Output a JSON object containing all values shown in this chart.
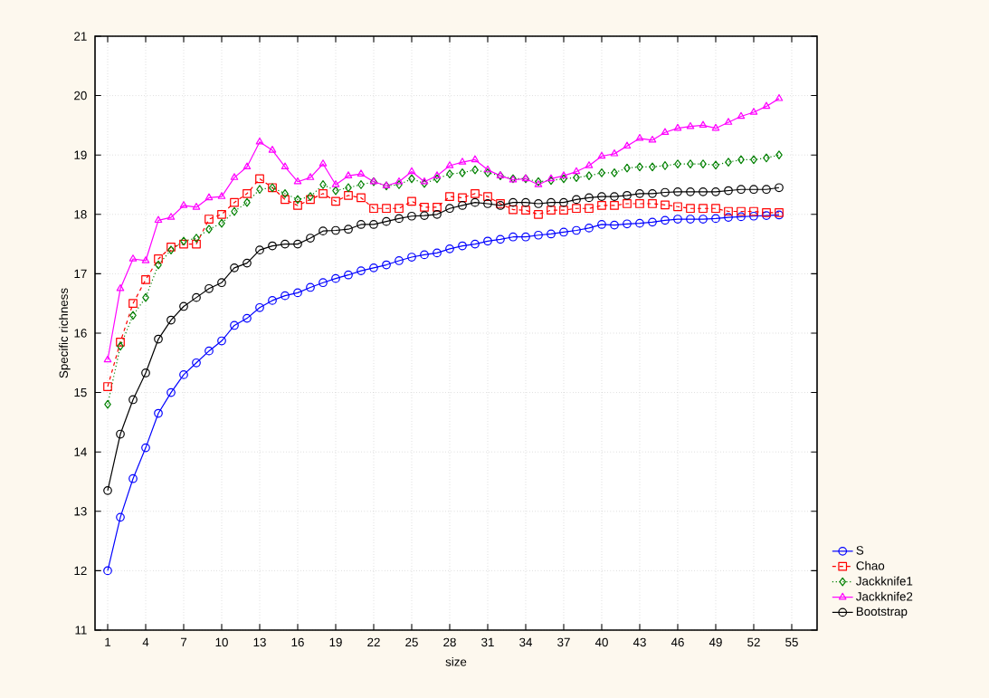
{
  "chart_data": {
    "type": "line",
    "xlabel": "size",
    "ylabel": "Specific richness",
    "x": [
      1,
      2,
      3,
      4,
      5,
      6,
      7,
      8,
      9,
      10,
      11,
      12,
      13,
      14,
      15,
      16,
      17,
      18,
      19,
      20,
      21,
      22,
      23,
      24,
      25,
      26,
      27,
      28,
      29,
      30,
      31,
      32,
      33,
      34,
      35,
      36,
      37,
      38,
      39,
      40,
      41,
      42,
      43,
      44,
      45,
      46,
      47,
      48,
      49,
      50,
      51,
      52,
      53,
      54
    ],
    "xlim": [
      0,
      57
    ],
    "xticks": [
      1,
      4,
      7,
      10,
      13,
      16,
      19,
      22,
      25,
      28,
      31,
      34,
      37,
      40,
      43,
      46,
      49,
      52,
      55
    ],
    "ylim": [
      11,
      21
    ],
    "yticks": [
      11,
      12,
      13,
      14,
      15,
      16,
      17,
      18,
      19,
      20,
      21
    ],
    "grid": true,
    "legend": "bottom right",
    "series": [
      {
        "name": "S",
        "color": "#0000ff",
        "marker": "circle",
        "line_style": "solid",
        "values": [
          12.0,
          12.9,
          13.55,
          14.07,
          14.65,
          15.0,
          15.3,
          15.5,
          15.7,
          15.87,
          16.13,
          16.25,
          16.43,
          16.55,
          16.63,
          16.68,
          16.77,
          16.85,
          16.92,
          16.98,
          17.05,
          17.1,
          17.15,
          17.22,
          17.28,
          17.32,
          17.35,
          17.42,
          17.47,
          17.5,
          17.55,
          17.58,
          17.62,
          17.62,
          17.65,
          17.67,
          17.7,
          17.73,
          17.77,
          17.83,
          17.82,
          17.84,
          17.85,
          17.87,
          17.9,
          17.92,
          17.92,
          17.92,
          17.93,
          17.95,
          17.96,
          17.97,
          17.98,
          17.99
        ]
      },
      {
        "name": "Chao",
        "color": "#ff0000",
        "marker": "square",
        "line_style": "dashed",
        "values": [
          15.1,
          15.85,
          16.5,
          16.9,
          17.25,
          17.45,
          17.5,
          17.5,
          17.92,
          18.0,
          18.2,
          18.35,
          18.6,
          18.45,
          18.25,
          18.15,
          18.25,
          18.35,
          18.22,
          18.32,
          18.28,
          18.1,
          18.1,
          18.1,
          18.22,
          18.12,
          18.12,
          18.3,
          18.28,
          18.35,
          18.3,
          18.18,
          18.08,
          18.07,
          18.0,
          18.07,
          18.07,
          18.1,
          18.1,
          18.15,
          18.15,
          18.18,
          18.18,
          18.18,
          18.16,
          18.13,
          18.1,
          18.1,
          18.1,
          18.05,
          18.05,
          18.05,
          18.03,
          18.03
        ]
      },
      {
        "name": "Jackknife1",
        "color": "#008000",
        "marker": "diamond",
        "line_style": "dotted",
        "values": [
          14.8,
          15.78,
          16.3,
          16.6,
          17.15,
          17.4,
          17.55,
          17.6,
          17.75,
          17.85,
          18.05,
          18.2,
          18.42,
          18.45,
          18.35,
          18.25,
          18.3,
          18.5,
          18.4,
          18.45,
          18.5,
          18.55,
          18.48,
          18.5,
          18.6,
          18.52,
          18.6,
          18.68,
          18.7,
          18.75,
          18.7,
          18.65,
          18.6,
          18.6,
          18.55,
          18.57,
          18.6,
          18.62,
          18.65,
          18.7,
          18.7,
          18.78,
          18.8,
          18.8,
          18.82,
          18.85,
          18.85,
          18.85,
          18.83,
          18.88,
          18.92,
          18.92,
          18.95,
          19.0
        ]
      },
      {
        "name": "Jackknife2",
        "color": "#ff00ff",
        "marker": "triangle",
        "line_style": "solid",
        "values": [
          15.55,
          16.75,
          17.25,
          17.22,
          17.9,
          17.95,
          18.15,
          18.12,
          18.28,
          18.3,
          18.62,
          18.8,
          19.22,
          19.08,
          18.8,
          18.55,
          18.62,
          18.85,
          18.5,
          18.65,
          18.68,
          18.55,
          18.48,
          18.55,
          18.72,
          18.55,
          18.65,
          18.82,
          18.88,
          18.92,
          18.75,
          18.65,
          18.58,
          18.6,
          18.5,
          18.6,
          18.65,
          18.72,
          18.82,
          18.98,
          19.02,
          19.15,
          19.28,
          19.25,
          19.38,
          19.45,
          19.48,
          19.5,
          19.45,
          19.55,
          19.65,
          19.72,
          19.82,
          19.95
        ]
      },
      {
        "name": "Bootstrap",
        "color": "#000000",
        "marker": "circle",
        "line_style": "solid",
        "values": [
          13.35,
          14.3,
          14.88,
          15.33,
          15.9,
          16.22,
          16.45,
          16.6,
          16.75,
          16.85,
          17.1,
          17.18,
          17.4,
          17.47,
          17.5,
          17.5,
          17.6,
          17.72,
          17.73,
          17.75,
          17.83,
          17.83,
          17.88,
          17.93,
          17.97,
          17.98,
          18.0,
          18.1,
          18.15,
          18.2,
          18.18,
          18.15,
          18.2,
          18.2,
          18.18,
          18.2,
          18.2,
          18.25,
          18.28,
          18.3,
          18.3,
          18.32,
          18.35,
          18.35,
          18.37,
          18.38,
          18.38,
          18.38,
          18.38,
          18.4,
          18.42,
          18.42,
          18.42,
          18.45
        ]
      }
    ]
  }
}
